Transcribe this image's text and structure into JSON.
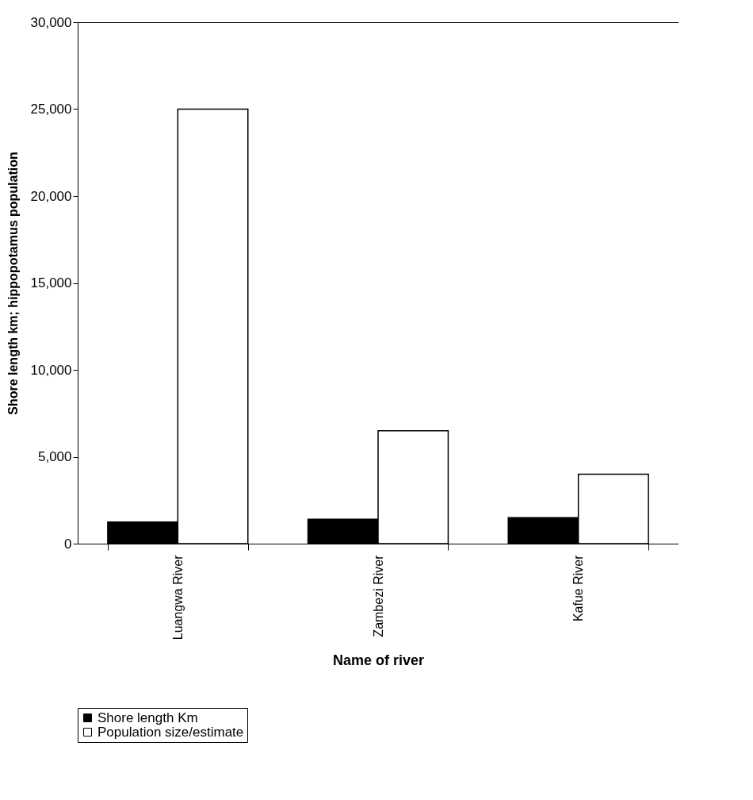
{
  "chart_data": {
    "type": "bar",
    "xlabel": "Name of river",
    "ylabel": "Shore length km; hippopotamus population",
    "categories": [
      "Luangwa River",
      "Zambezi River",
      "Kafue River"
    ],
    "series": [
      {
        "name": "Shore length Km",
        "color": "#000000",
        "values": [
          1250,
          1400,
          1500
        ]
      },
      {
        "name": "Population size/estimate",
        "color": "#ffffff",
        "values": [
          25000,
          6500,
          4000
        ]
      }
    ],
    "ylim": [
      0,
      30000
    ],
    "yticks": [
      {
        "value": 0,
        "label": "0"
      },
      {
        "value": 5000,
        "label": "5,000"
      },
      {
        "value": 10000,
        "label": "10,000"
      },
      {
        "value": 15000,
        "label": "15,000"
      },
      {
        "value": 20000,
        "label": "20,000"
      },
      {
        "value": 25000,
        "label": "25,000"
      },
      {
        "value": 30000,
        "label": "30,000"
      }
    ],
    "grid": false,
    "legend": "bottom"
  }
}
